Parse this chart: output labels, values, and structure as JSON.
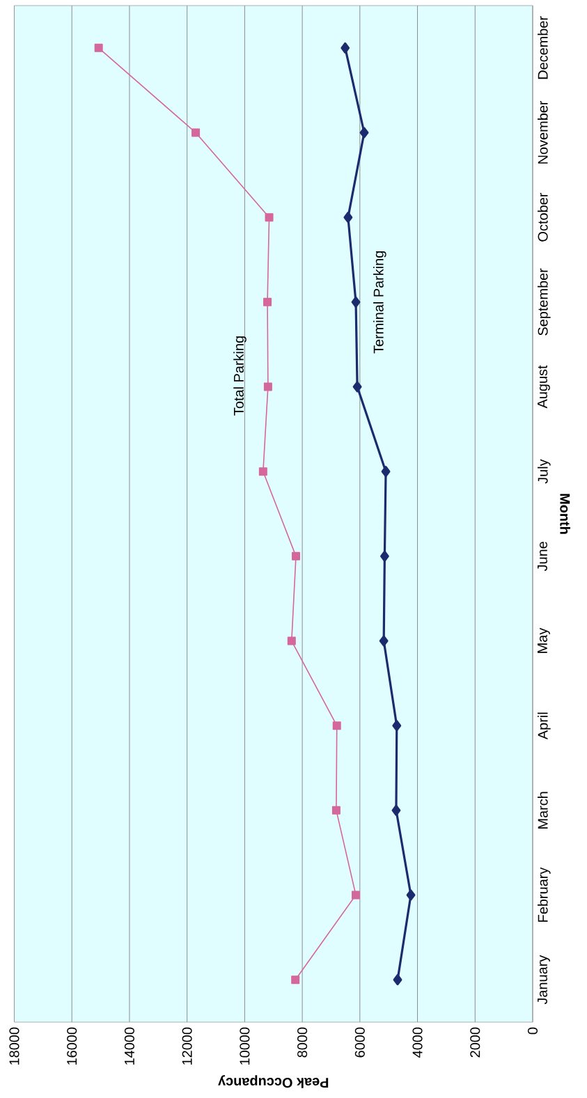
{
  "chart_data": {
    "type": "line",
    "orientation": "horizontal",
    "xlabel": "Peak Occupancy",
    "ylabel": "Month",
    "categories": [
      "December",
      "November",
      "October",
      "September",
      "August",
      "July",
      "June",
      "May",
      "April",
      "March",
      "February",
      "January"
    ],
    "series": [
      {
        "name": "Total Parking",
        "color": "#d4679b",
        "marker": "square",
        "values": [
          15070,
          11700,
          9150,
          9210,
          9190,
          9360,
          8220,
          8370,
          6800,
          6820,
          6140,
          8240
        ]
      },
      {
        "name": "Terminal Parking",
        "color": "#1c2a6e",
        "marker": "diamond",
        "values": [
          6510,
          5850,
          6410,
          6140,
          6090,
          5100,
          5140,
          5170,
          4720,
          4740,
          4230,
          4690
        ]
      }
    ],
    "xlim": [
      18000,
      0
    ],
    "xticks": [
      0,
      2000,
      4000,
      6000,
      8000,
      10000,
      12000,
      14000,
      16000,
      18000
    ],
    "grid": "x"
  }
}
